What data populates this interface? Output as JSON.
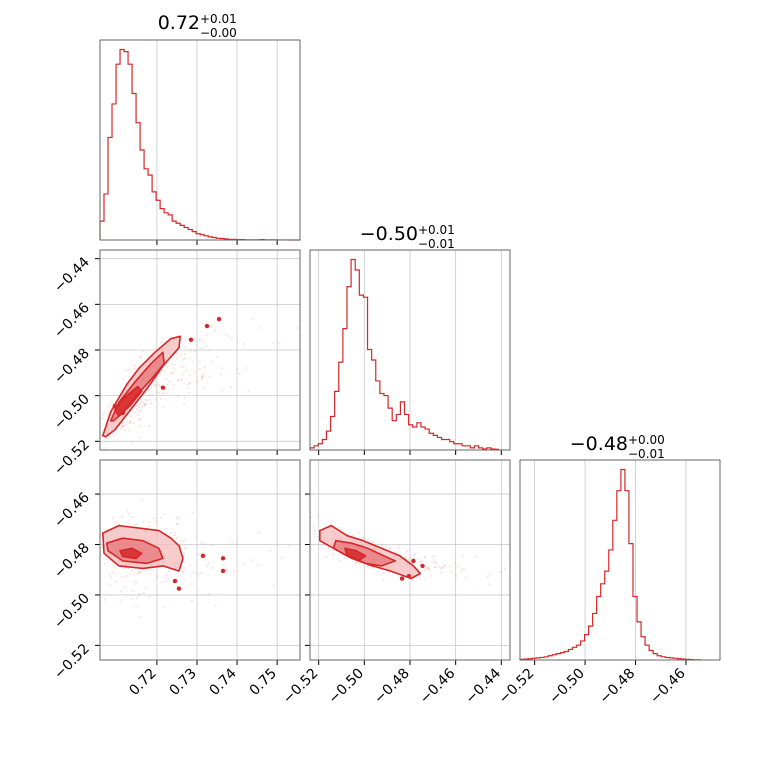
{
  "colors": {
    "primary": "#d62728",
    "fill_light": "#f4b7b8",
    "fill_mid": "#e56f72",
    "grid": "#c8c8c8",
    "frame": "#666666"
  },
  "panel_titles": [
    {
      "main": "0.72",
      "sup": "+0.01",
      "sub": "−0.00"
    },
    {
      "main": "−0.50",
      "sup": "+0.01",
      "sub": "−0.01"
    },
    {
      "main": "−0.48",
      "sup": "+0.00",
      "sub": "−0.01"
    }
  ],
  "chart_data": [
    {
      "type": "histogram",
      "panel": "p0",
      "parameter_index": 0,
      "x_range": [
        0.7058,
        0.7557
      ],
      "grid": true,
      "xticks": [
        0.72,
        0.73,
        0.74,
        0.75
      ],
      "xtick_labels": [
        "0.72",
        "0.73",
        "0.74",
        "0.75"
      ],
      "bins": [
        [
          0.7058,
          0.09
        ],
        [
          0.7068,
          0.22
        ],
        [
          0.7078,
          0.49
        ],
        [
          0.7088,
          0.65
        ],
        [
          0.7098,
          0.84
        ],
        [
          0.7108,
          0.91
        ],
        [
          0.7118,
          0.9
        ],
        [
          0.7128,
          0.84
        ],
        [
          0.7138,
          0.7
        ],
        [
          0.7148,
          0.56
        ],
        [
          0.7158,
          0.43
        ],
        [
          0.7168,
          0.34
        ],
        [
          0.7178,
          0.31
        ],
        [
          0.7188,
          0.23
        ],
        [
          0.7198,
          0.19
        ],
        [
          0.7208,
          0.15
        ],
        [
          0.7218,
          0.13
        ],
        [
          0.7228,
          0.12
        ],
        [
          0.7238,
          0.09
        ],
        [
          0.7248,
          0.08
        ],
        [
          0.7258,
          0.07
        ],
        [
          0.7268,
          0.06
        ],
        [
          0.7278,
          0.05
        ],
        [
          0.7288,
          0.04
        ],
        [
          0.7298,
          0.03
        ],
        [
          0.7308,
          0.025
        ],
        [
          0.7318,
          0.02
        ],
        [
          0.7328,
          0.015
        ],
        [
          0.7338,
          0.012
        ],
        [
          0.7348,
          0.008
        ],
        [
          0.7358,
          0.007
        ],
        [
          0.7368,
          0.005
        ],
        [
          0.7378,
          0.003
        ],
        [
          0.7388,
          0.003
        ],
        [
          0.7398,
          0.002
        ],
        [
          0.7408,
          0.002
        ],
        [
          0.7418,
          0.001
        ],
        [
          0.7428,
          0.001
        ],
        [
          0.7438,
          0.001
        ],
        [
          0.7448,
          0.001
        ],
        [
          0.7458,
          0.002
        ],
        [
          0.7468,
          0.001
        ],
        [
          0.7478,
          0.0005
        ],
        [
          0.7488,
          0.0005
        ],
        [
          0.7498,
          0.0003
        ],
        [
          0.7508,
          0.0002
        ],
        [
          0.7518,
          0.0002
        ],
        [
          0.7528,
          0.0001
        ],
        [
          0.7538,
          0.0001
        ],
        [
          0.7548,
          0.0001
        ]
      ]
    },
    {
      "type": "scatter_contour",
      "panel": "p10",
      "x_parameter": 0,
      "y_parameter": 1,
      "x_range": [
        0.7058,
        0.7557
      ],
      "y_range": [
        -0.5238,
        -0.4362
      ],
      "grid": true,
      "yticks": [
        -0.44,
        -0.46,
        -0.48,
        -0.5,
        -0.52
      ],
      "ytick_labels": [
        "−0.44",
        "−0.46",
        "−0.48",
        "−0.50",
        "−0.52"
      ],
      "scatter_cloud": {
        "center": [
          0.718,
          -0.497
        ],
        "spread": [
          0.008,
          0.014
        ]
      },
      "contours": [
        {
          "level": "outer",
          "points": [
            [
              0.7065,
              -0.5175
            ],
            [
              0.7085,
              -0.507
            ],
            [
              0.7125,
              -0.495
            ],
            [
              0.7155,
              -0.488
            ],
            [
              0.7195,
              -0.481
            ],
            [
              0.7235,
              -0.475
            ],
            [
              0.7258,
              -0.474
            ],
            [
              0.7255,
              -0.479
            ],
            [
              0.7215,
              -0.487
            ],
            [
              0.7175,
              -0.497
            ],
            [
              0.7135,
              -0.506
            ],
            [
              0.7095,
              -0.515
            ],
            [
              0.7072,
              -0.518
            ]
          ]
        },
        {
          "level": "mid",
          "points": [
            [
              0.7085,
              -0.511
            ],
            [
              0.7105,
              -0.503
            ],
            [
              0.7145,
              -0.494
            ],
            [
              0.7185,
              -0.486
            ],
            [
              0.7215,
              -0.481
            ],
            [
              0.7218,
              -0.486
            ],
            [
              0.7185,
              -0.493
            ],
            [
              0.7148,
              -0.5
            ],
            [
              0.7118,
              -0.507
            ],
            [
              0.7092,
              -0.511
            ]
          ]
        },
        {
          "level": "inner",
          "points": [
            [
              0.7095,
              -0.506
            ],
            [
              0.7118,
              -0.501
            ],
            [
              0.7152,
              -0.496
            ],
            [
              0.7162,
              -0.498
            ],
            [
              0.7135,
              -0.504
            ],
            [
              0.7105,
              -0.509
            ]
          ]
        }
      ],
      "outlier_points": [
        [
          0.7355,
          -0.4665
        ],
        [
          0.7325,
          -0.4695
        ],
        [
          0.7285,
          -0.4755
        ],
        [
          0.7095,
          -0.5045
        ],
        [
          0.7115,
          -0.5075
        ],
        [
          0.7215,
          -0.4965
        ]
      ]
    },
    {
      "type": "histogram",
      "panel": "p11",
      "parameter_index": 1,
      "x_range": [
        -0.5238,
        -0.4362
      ],
      "grid": true,
      "bins": [
        [
          -0.5238,
          0.01
        ],
        [
          -0.522,
          0.02
        ],
        [
          -0.5202,
          0.03
        ],
        [
          -0.5184,
          0.05
        ],
        [
          -0.5166,
          0.09
        ],
        [
          -0.5148,
          0.16
        ],
        [
          -0.513,
          0.28
        ],
        [
          -0.5112,
          0.42
        ],
        [
          -0.5094,
          0.58
        ],
        [
          -0.5076,
          0.78
        ],
        [
          -0.5058,
          0.91
        ],
        [
          -0.504,
          0.86
        ],
        [
          -0.5022,
          0.74
        ],
        [
          -0.5004,
          0.73
        ],
        [
          -0.4986,
          0.48
        ],
        [
          -0.4968,
          0.43
        ],
        [
          -0.495,
          0.33
        ],
        [
          -0.4932,
          0.27
        ],
        [
          -0.4914,
          0.26
        ],
        [
          -0.4896,
          0.2
        ],
        [
          -0.4878,
          0.14
        ],
        [
          -0.486,
          0.17
        ],
        [
          -0.4842,
          0.23
        ],
        [
          -0.4824,
          0.17
        ],
        [
          -0.4806,
          0.12
        ],
        [
          -0.4788,
          0.11
        ],
        [
          -0.477,
          0.13
        ],
        [
          -0.4752,
          0.11
        ],
        [
          -0.4734,
          0.1
        ],
        [
          -0.4716,
          0.08
        ],
        [
          -0.4698,
          0.07
        ],
        [
          -0.468,
          0.06
        ],
        [
          -0.4662,
          0.05
        ],
        [
          -0.4644,
          0.05
        ],
        [
          -0.4626,
          0.04
        ],
        [
          -0.4608,
          0.03
        ],
        [
          -0.459,
          0.03
        ],
        [
          -0.4572,
          0.02
        ],
        [
          -0.4554,
          0.02
        ],
        [
          -0.4536,
          0.01
        ],
        [
          -0.4518,
          0.02
        ],
        [
          -0.45,
          0.01
        ],
        [
          -0.4482,
          0.005
        ],
        [
          -0.4464,
          0.01
        ],
        [
          -0.4446,
          0.005
        ],
        [
          -0.4428,
          0.003
        ]
      ]
    },
    {
      "type": "scatter_contour",
      "panel": "p20",
      "x_parameter": 0,
      "y_parameter": 2,
      "x_range": [
        0.7058,
        0.7557
      ],
      "y_range": [
        -0.5258,
        -0.4465
      ],
      "grid": true,
      "xticks": [
        0.72,
        0.73,
        0.74,
        0.75
      ],
      "xtick_labels": [
        "0.72",
        "0.73",
        "0.74",
        "0.75"
      ],
      "yticks": [
        -0.46,
        -0.48,
        -0.5,
        -0.52
      ],
      "ytick_labels": [
        "−0.46",
        "−0.48",
        "−0.50",
        "−0.52"
      ],
      "scatter_cloud": {
        "center": [
          0.717,
          -0.484
        ],
        "spread": [
          0.007,
          0.008
        ]
      },
      "contours": [
        {
          "level": "outer",
          "points": [
            [
              0.7065,
              -0.4755
            ],
            [
              0.7105,
              -0.4725
            ],
            [
              0.7155,
              -0.4735
            ],
            [
              0.7205,
              -0.4745
            ],
            [
              0.7235,
              -0.4775
            ],
            [
              0.7255,
              -0.4805
            ],
            [
              0.7265,
              -0.4855
            ],
            [
              0.7255,
              -0.4905
            ],
            [
              0.7215,
              -0.4885
            ],
            [
              0.7165,
              -0.4895
            ],
            [
              0.7105,
              -0.4885
            ],
            [
              0.7068,
              -0.4835
            ]
          ]
        },
        {
          "level": "mid",
          "points": [
            [
              0.7075,
              -0.4795
            ],
            [
              0.7115,
              -0.4775
            ],
            [
              0.7165,
              -0.4785
            ],
            [
              0.7205,
              -0.4815
            ],
            [
              0.7215,
              -0.4855
            ],
            [
              0.7175,
              -0.4875
            ],
            [
              0.7115,
              -0.4865
            ],
            [
              0.7078,
              -0.4825
            ]
          ]
        },
        {
          "level": "inner",
          "points": [
            [
              0.7108,
              -0.4825
            ],
            [
              0.7138,
              -0.4815
            ],
            [
              0.7162,
              -0.4835
            ],
            [
              0.7148,
              -0.4855
            ],
            [
              0.7115,
              -0.4848
            ]
          ]
        }
      ],
      "outlier_points": [
        [
          0.7315,
          -0.4845
        ],
        [
          0.7365,
          -0.4855
        ],
        [
          0.7365,
          -0.4905
        ],
        [
          0.7245,
          -0.4945
        ],
        [
          0.7255,
          -0.4975
        ]
      ]
    },
    {
      "type": "scatter_contour",
      "panel": "p21",
      "x_parameter": 1,
      "y_parameter": 2,
      "x_range": [
        -0.5238,
        -0.4362
      ],
      "y_range": [
        -0.5258,
        -0.4465
      ],
      "grid": true,
      "xticks": [
        -0.52,
        -0.5,
        -0.48,
        -0.46,
        -0.44
      ],
      "xtick_labels": [
        "−0.52",
        "−0.50",
        "−0.48",
        "−0.46",
        "−0.44"
      ],
      "scatter_cloud": {
        "center": [
          -0.497,
          -0.484
        ],
        "spread": [
          0.012,
          0.006
        ]
      },
      "contours": [
        {
          "level": "outer",
          "points": [
            [
              -0.5195,
              -0.4745
            ],
            [
              -0.5145,
              -0.4725
            ],
            [
              -0.5075,
              -0.4765
            ],
            [
              -0.5005,
              -0.4785
            ],
            [
              -0.4925,
              -0.4815
            ],
            [
              -0.4845,
              -0.4845
            ],
            [
              -0.4785,
              -0.4885
            ],
            [
              -0.4755,
              -0.4915
            ],
            [
              -0.4795,
              -0.4935
            ],
            [
              -0.4885,
              -0.4905
            ],
            [
              -0.4965,
              -0.4885
            ],
            [
              -0.5055,
              -0.4855
            ],
            [
              -0.5135,
              -0.4815
            ],
            [
              -0.5195,
              -0.4785
            ]
          ]
        },
        {
          "level": "mid",
          "points": [
            [
              -0.5125,
              -0.4785
            ],
            [
              -0.5055,
              -0.4795
            ],
            [
              -0.4985,
              -0.4815
            ],
            [
              -0.4915,
              -0.4845
            ],
            [
              -0.4865,
              -0.4865
            ],
            [
              -0.4925,
              -0.4885
            ],
            [
              -0.4995,
              -0.4875
            ],
            [
              -0.5075,
              -0.4845
            ],
            [
              -0.5135,
              -0.4815
            ]
          ]
        },
        {
          "level": "inner",
          "points": [
            [
              -0.5085,
              -0.4815
            ],
            [
              -0.5035,
              -0.4825
            ],
            [
              -0.4995,
              -0.4845
            ],
            [
              -0.5025,
              -0.4865
            ],
            [
              -0.5075,
              -0.4845
            ]
          ]
        }
      ],
      "outlier_points": [
        [
          -0.4785,
          -0.4865
        ],
        [
          -0.4745,
          -0.4885
        ],
        [
          -0.4805,
          -0.4925
        ],
        [
          -0.4835,
          -0.4935
        ]
      ]
    },
    {
      "type": "histogram",
      "panel": "p22",
      "parameter_index": 2,
      "x_range": [
        -0.5258,
        -0.4465
      ],
      "grid": true,
      "xticks": [
        -0.52,
        -0.5,
        -0.48,
        -0.46
      ],
      "xtick_labels": [
        "−0.52",
        "−0.50",
        "−0.48",
        "−0.46"
      ],
      "bins": [
        [
          -0.5258,
          0.003
        ],
        [
          -0.5242,
          0.004
        ],
        [
          -0.5226,
          0.006
        ],
        [
          -0.521,
          0.008
        ],
        [
          -0.5194,
          0.01
        ],
        [
          -0.5178,
          0.012
        ],
        [
          -0.5162,
          0.015
        ],
        [
          -0.5146,
          0.02
        ],
        [
          -0.513,
          0.025
        ],
        [
          -0.5114,
          0.03
        ],
        [
          -0.5098,
          0.035
        ],
        [
          -0.5082,
          0.04
        ],
        [
          -0.5066,
          0.05
        ],
        [
          -0.505,
          0.06
        ],
        [
          -0.5034,
          0.07
        ],
        [
          -0.5018,
          0.09
        ],
        [
          -0.5002,
          0.12
        ],
        [
          -0.4986,
          0.16
        ],
        [
          -0.497,
          0.22
        ],
        [
          -0.4954,
          0.3
        ],
        [
          -0.4938,
          0.36
        ],
        [
          -0.4922,
          0.42
        ],
        [
          -0.4906,
          0.52
        ],
        [
          -0.489,
          0.66
        ],
        [
          -0.4874,
          0.8
        ],
        [
          -0.4858,
          0.9
        ],
        [
          -0.4842,
          0.8
        ],
        [
          -0.4826,
          0.55
        ],
        [
          -0.481,
          0.3
        ],
        [
          -0.4794,
          0.18
        ],
        [
          -0.4778,
          0.11
        ],
        [
          -0.4762,
          0.07
        ],
        [
          -0.4746,
          0.045
        ],
        [
          -0.473,
          0.03
        ],
        [
          -0.4714,
          0.02
        ],
        [
          -0.4698,
          0.015
        ],
        [
          -0.4682,
          0.012
        ],
        [
          -0.4666,
          0.01
        ],
        [
          -0.465,
          0.008
        ],
        [
          -0.4634,
          0.006
        ],
        [
          -0.4618,
          0.004
        ],
        [
          -0.4602,
          0.003
        ],
        [
          -0.4586,
          0.002
        ],
        [
          -0.457,
          0.001
        ],
        [
          -0.4554,
          0.001
        ]
      ]
    }
  ]
}
